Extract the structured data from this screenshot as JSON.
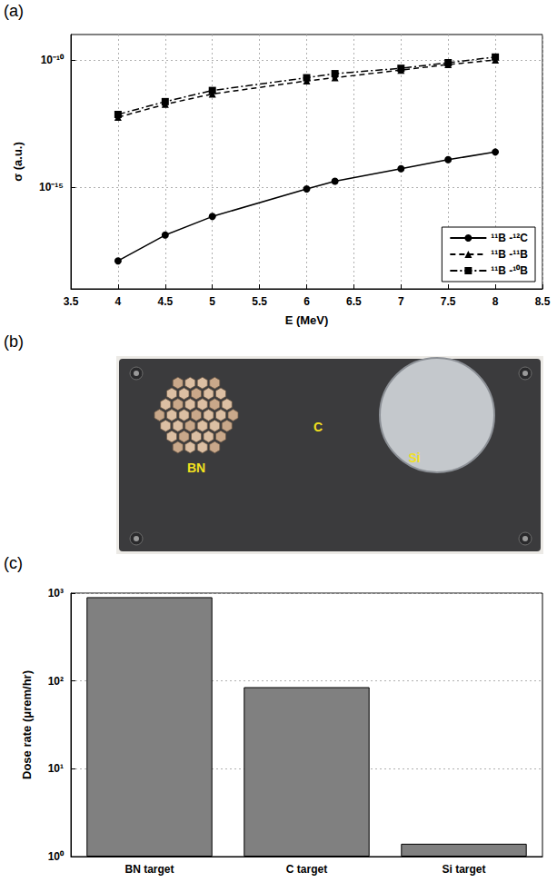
{
  "chart_data": [
    {
      "type": "line",
      "panel": "(a)",
      "x_label": "E (MeV)",
      "y_label": "σ (a.u.)",
      "x": [
        4,
        4.5,
        5,
        6,
        6.3,
        7,
        7.5,
        8
      ],
      "series": [
        {
          "name": "¹¹B -¹²C",
          "color": "#000000",
          "marker": "circle",
          "line_style": "solid",
          "values": [
            1.26e-18,
            1.3e-17,
            7e-17,
            8.5e-16,
            1.7e-15,
            5.3e-15,
            1.2e-14,
            2.4e-14
          ]
        },
        {
          "name": "¹¹B -¹¹B",
          "color": "#000000",
          "marker": "triangle",
          "line_style": "dashed",
          "values": [
            5.6e-13,
            1.8e-12,
            4.6e-12,
            1.5e-11,
            2e-11,
            4e-11,
            6.6e-11,
            1e-10
          ]
        },
        {
          "name": "¹¹B -¹⁰B",
          "color": "#000000",
          "marker": "square",
          "line_style": "dashdot",
          "values": [
            7.2e-13,
            2.3e-12,
            6.3e-12,
            2e-11,
            2.9e-11,
            4.7e-11,
            7.8e-11,
            1.3e-10
          ]
        }
      ],
      "xlim": [
        3.5,
        8.5
      ],
      "xticks": [
        3.5,
        4,
        4.5,
        5,
        5.5,
        6,
        6.5,
        7,
        7.5,
        8,
        8.5
      ],
      "ylim": [
        1e-19,
        1e-09
      ],
      "yticks": [
        {
          "value": 1e-15,
          "label": "10⁻¹⁵"
        },
        {
          "value": 1e-10,
          "label": "10⁻¹⁰"
        }
      ],
      "log": "y",
      "grid": true,
      "legend": "southeast"
    },
    {
      "type": "bar",
      "panel": "(c)",
      "y_label": "Dose rate (μrem/hr)",
      "categories": [
        "BN target",
        "C target",
        "Si target"
      ],
      "values": [
        900,
        85,
        1.4
      ],
      "color": "#808080",
      "ylim": [
        1,
        1000
      ],
      "yticks": [
        {
          "value": 1,
          "label": "10⁰"
        },
        {
          "value": 10,
          "label": "10¹"
        },
        {
          "value": 100,
          "label": "10²"
        },
        {
          "value": 1000,
          "label": "10³"
        }
      ],
      "log": "y",
      "grid": true
    }
  ],
  "photo": {
    "panel": "(b)",
    "labels": [
      "BN",
      "C",
      "Si"
    ]
  }
}
